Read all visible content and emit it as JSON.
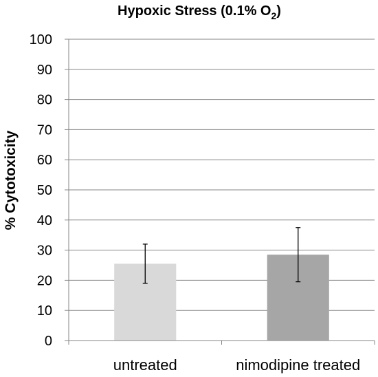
{
  "chart_data": {
    "type": "bar",
    "title": "Hypoxic Stress (0.1% O",
    "title_subscript": "2",
    "title_suffix": ")",
    "xlabel": "",
    "ylabel": "% Cytotoxicity",
    "categories": [
      "untreated",
      "nimodipine treated"
    ],
    "values": [
      25.5,
      28.5
    ],
    "error_low": [
      19,
      19.5
    ],
    "error_high": [
      32,
      37.5
    ],
    "bar_colors": [
      "#d9d9d9",
      "#a6a6a6"
    ],
    "ylim": [
      0,
      100
    ],
    "yticks": [
      "0",
      "10",
      "20",
      "30",
      "40",
      "50",
      "60",
      "70",
      "80",
      "90",
      "100"
    ],
    "grid": true,
    "grid_color": "#868686",
    "legend": "none"
  }
}
